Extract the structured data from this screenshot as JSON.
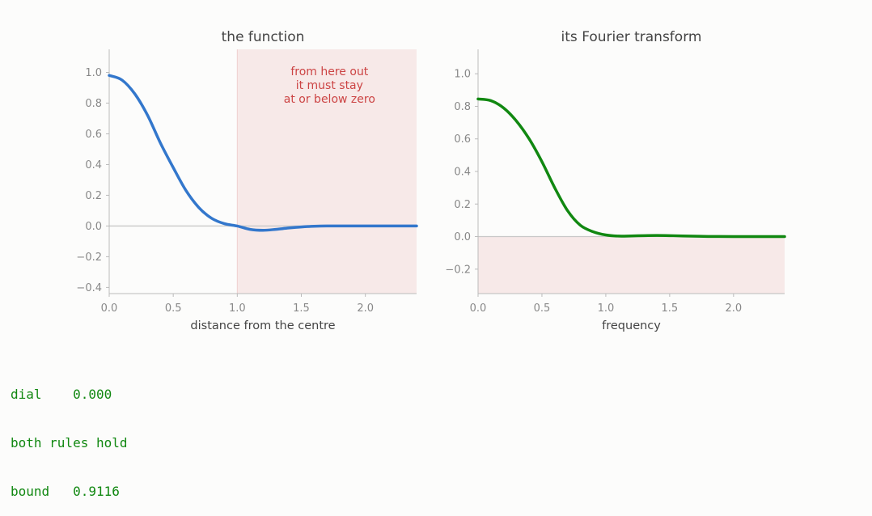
{
  "chart_data": [
    {
      "type": "line",
      "title": "the function",
      "xlabel": "distance from the centre",
      "ylabel": "",
      "xlim": [
        0.0,
        2.4
      ],
      "ylim": [
        -0.44,
        1.15
      ],
      "xticks": [
        "0.0",
        "0.5",
        "1.0",
        "1.5",
        "2.0"
      ],
      "yticks": [
        "−0.4",
        "−0.2",
        "0.0",
        "0.2",
        "0.4",
        "0.6",
        "0.8",
        "1.0"
      ],
      "grid": false,
      "shaded_region": {
        "x": [
          1.0,
          2.4
        ],
        "color": "#f7e9e8"
      },
      "annotation": [
        "from here out",
        "it must stay",
        "at or below zero"
      ],
      "series": [
        {
          "color": "#3377cc",
          "x": [
            0.0,
            0.1,
            0.2,
            0.3,
            0.4,
            0.5,
            0.6,
            0.7,
            0.8,
            0.9,
            1.0,
            1.1,
            1.2,
            1.3,
            1.4,
            1.5,
            1.6,
            1.7,
            1.8,
            2.0,
            2.2,
            2.4
          ],
          "y": [
            0.98,
            0.95,
            0.86,
            0.72,
            0.54,
            0.38,
            0.23,
            0.12,
            0.05,
            0.015,
            0.0,
            -0.022,
            -0.028,
            -0.022,
            -0.013,
            -0.006,
            -0.002,
            0.0,
            0.0,
            0.0,
            0.0,
            0.0
          ]
        }
      ]
    },
    {
      "type": "line",
      "title": "its Fourier transform",
      "xlabel": "frequency",
      "ylabel": "",
      "xlim": [
        0.0,
        2.4
      ],
      "ylim": [
        -0.35,
        1.15
      ],
      "xticks": [
        "0.0",
        "0.5",
        "1.0",
        "1.5",
        "2.0"
      ],
      "yticks": [
        "−0.2",
        "0.0",
        "0.2",
        "0.4",
        "0.6",
        "0.8",
        "1.0"
      ],
      "grid": false,
      "shaded_region": {
        "y": [
          -0.35,
          0.0
        ],
        "color": "#f7e9e8"
      },
      "series": [
        {
          "color": "#118811",
          "x": [
            0.0,
            0.1,
            0.2,
            0.3,
            0.4,
            0.5,
            0.6,
            0.7,
            0.8,
            0.9,
            1.0,
            1.1,
            1.2,
            1.3,
            1.4,
            1.5,
            1.6,
            1.8,
            2.0,
            2.2,
            2.4
          ],
          "y": [
            0.845,
            0.835,
            0.79,
            0.71,
            0.6,
            0.46,
            0.3,
            0.16,
            0.07,
            0.03,
            0.01,
            0.003,
            0.004,
            0.006,
            0.007,
            0.006,
            0.004,
            0.001,
            0.0,
            0.0,
            0.0
          ]
        }
      ]
    }
  ],
  "readout": {
    "dial": "dial    0.000",
    "status": "both rules hold",
    "bound": "bound   0.9116"
  }
}
